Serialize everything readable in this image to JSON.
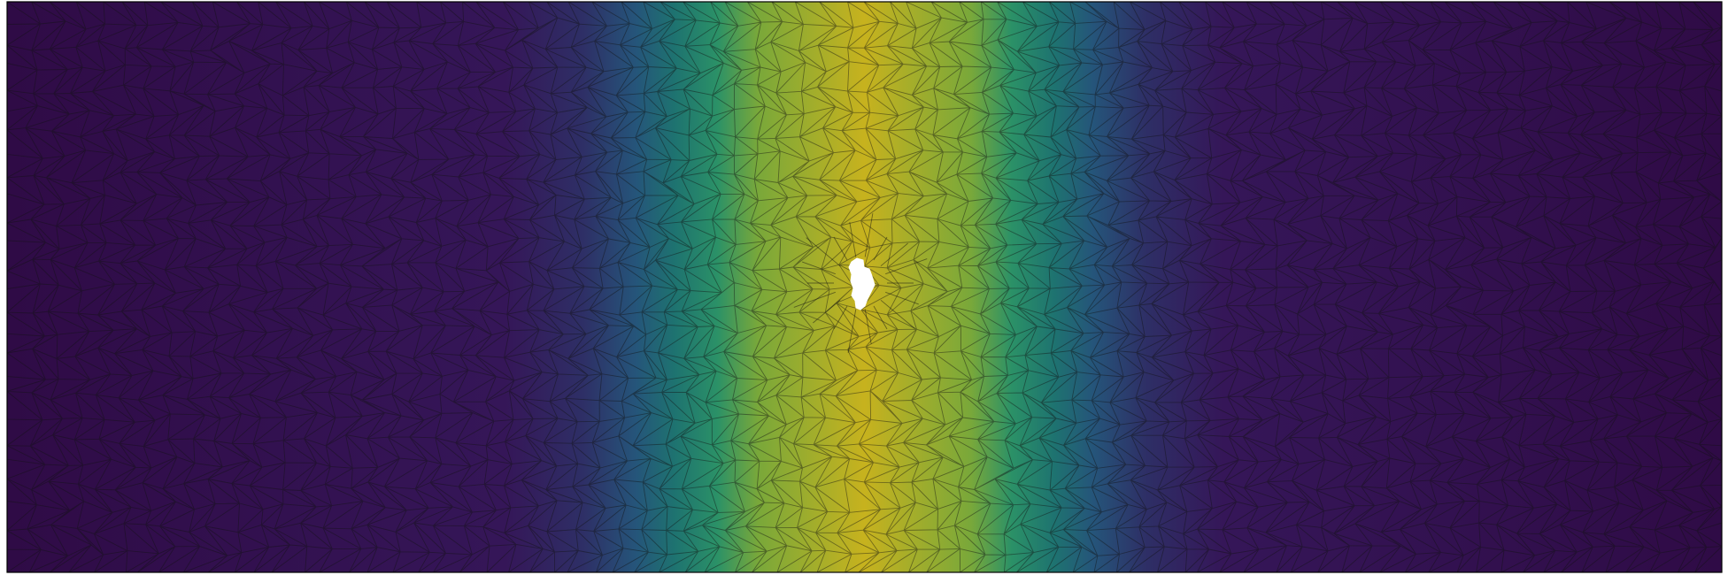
{
  "figure": {
    "kind": "finite-element mesh with scalar field",
    "colormap": [
      "#440154",
      "#3b528b",
      "#21918c",
      "#5ec962",
      "#c8b21c"
    ],
    "colormap_stops": [
      {
        "value": 0.0,
        "color": "#2f0b46"
      },
      {
        "value": 0.18,
        "color": "#351658"
      },
      {
        "value": 0.35,
        "color": "#2e2f66"
      },
      {
        "value": 0.5,
        "color": "#25557a"
      },
      {
        "value": 0.62,
        "color": "#1e7370"
      },
      {
        "value": 0.75,
        "color": "#2b9167"
      },
      {
        "value": 0.86,
        "color": "#79a83a"
      },
      {
        "value": 1.0,
        "color": "#c7b21e"
      }
    ],
    "field_peak_position": 0.5,
    "mesh_edge_color": "#111111",
    "frame_color": "#000000",
    "hole": {
      "present": true,
      "color": "#ffffff"
    }
  }
}
